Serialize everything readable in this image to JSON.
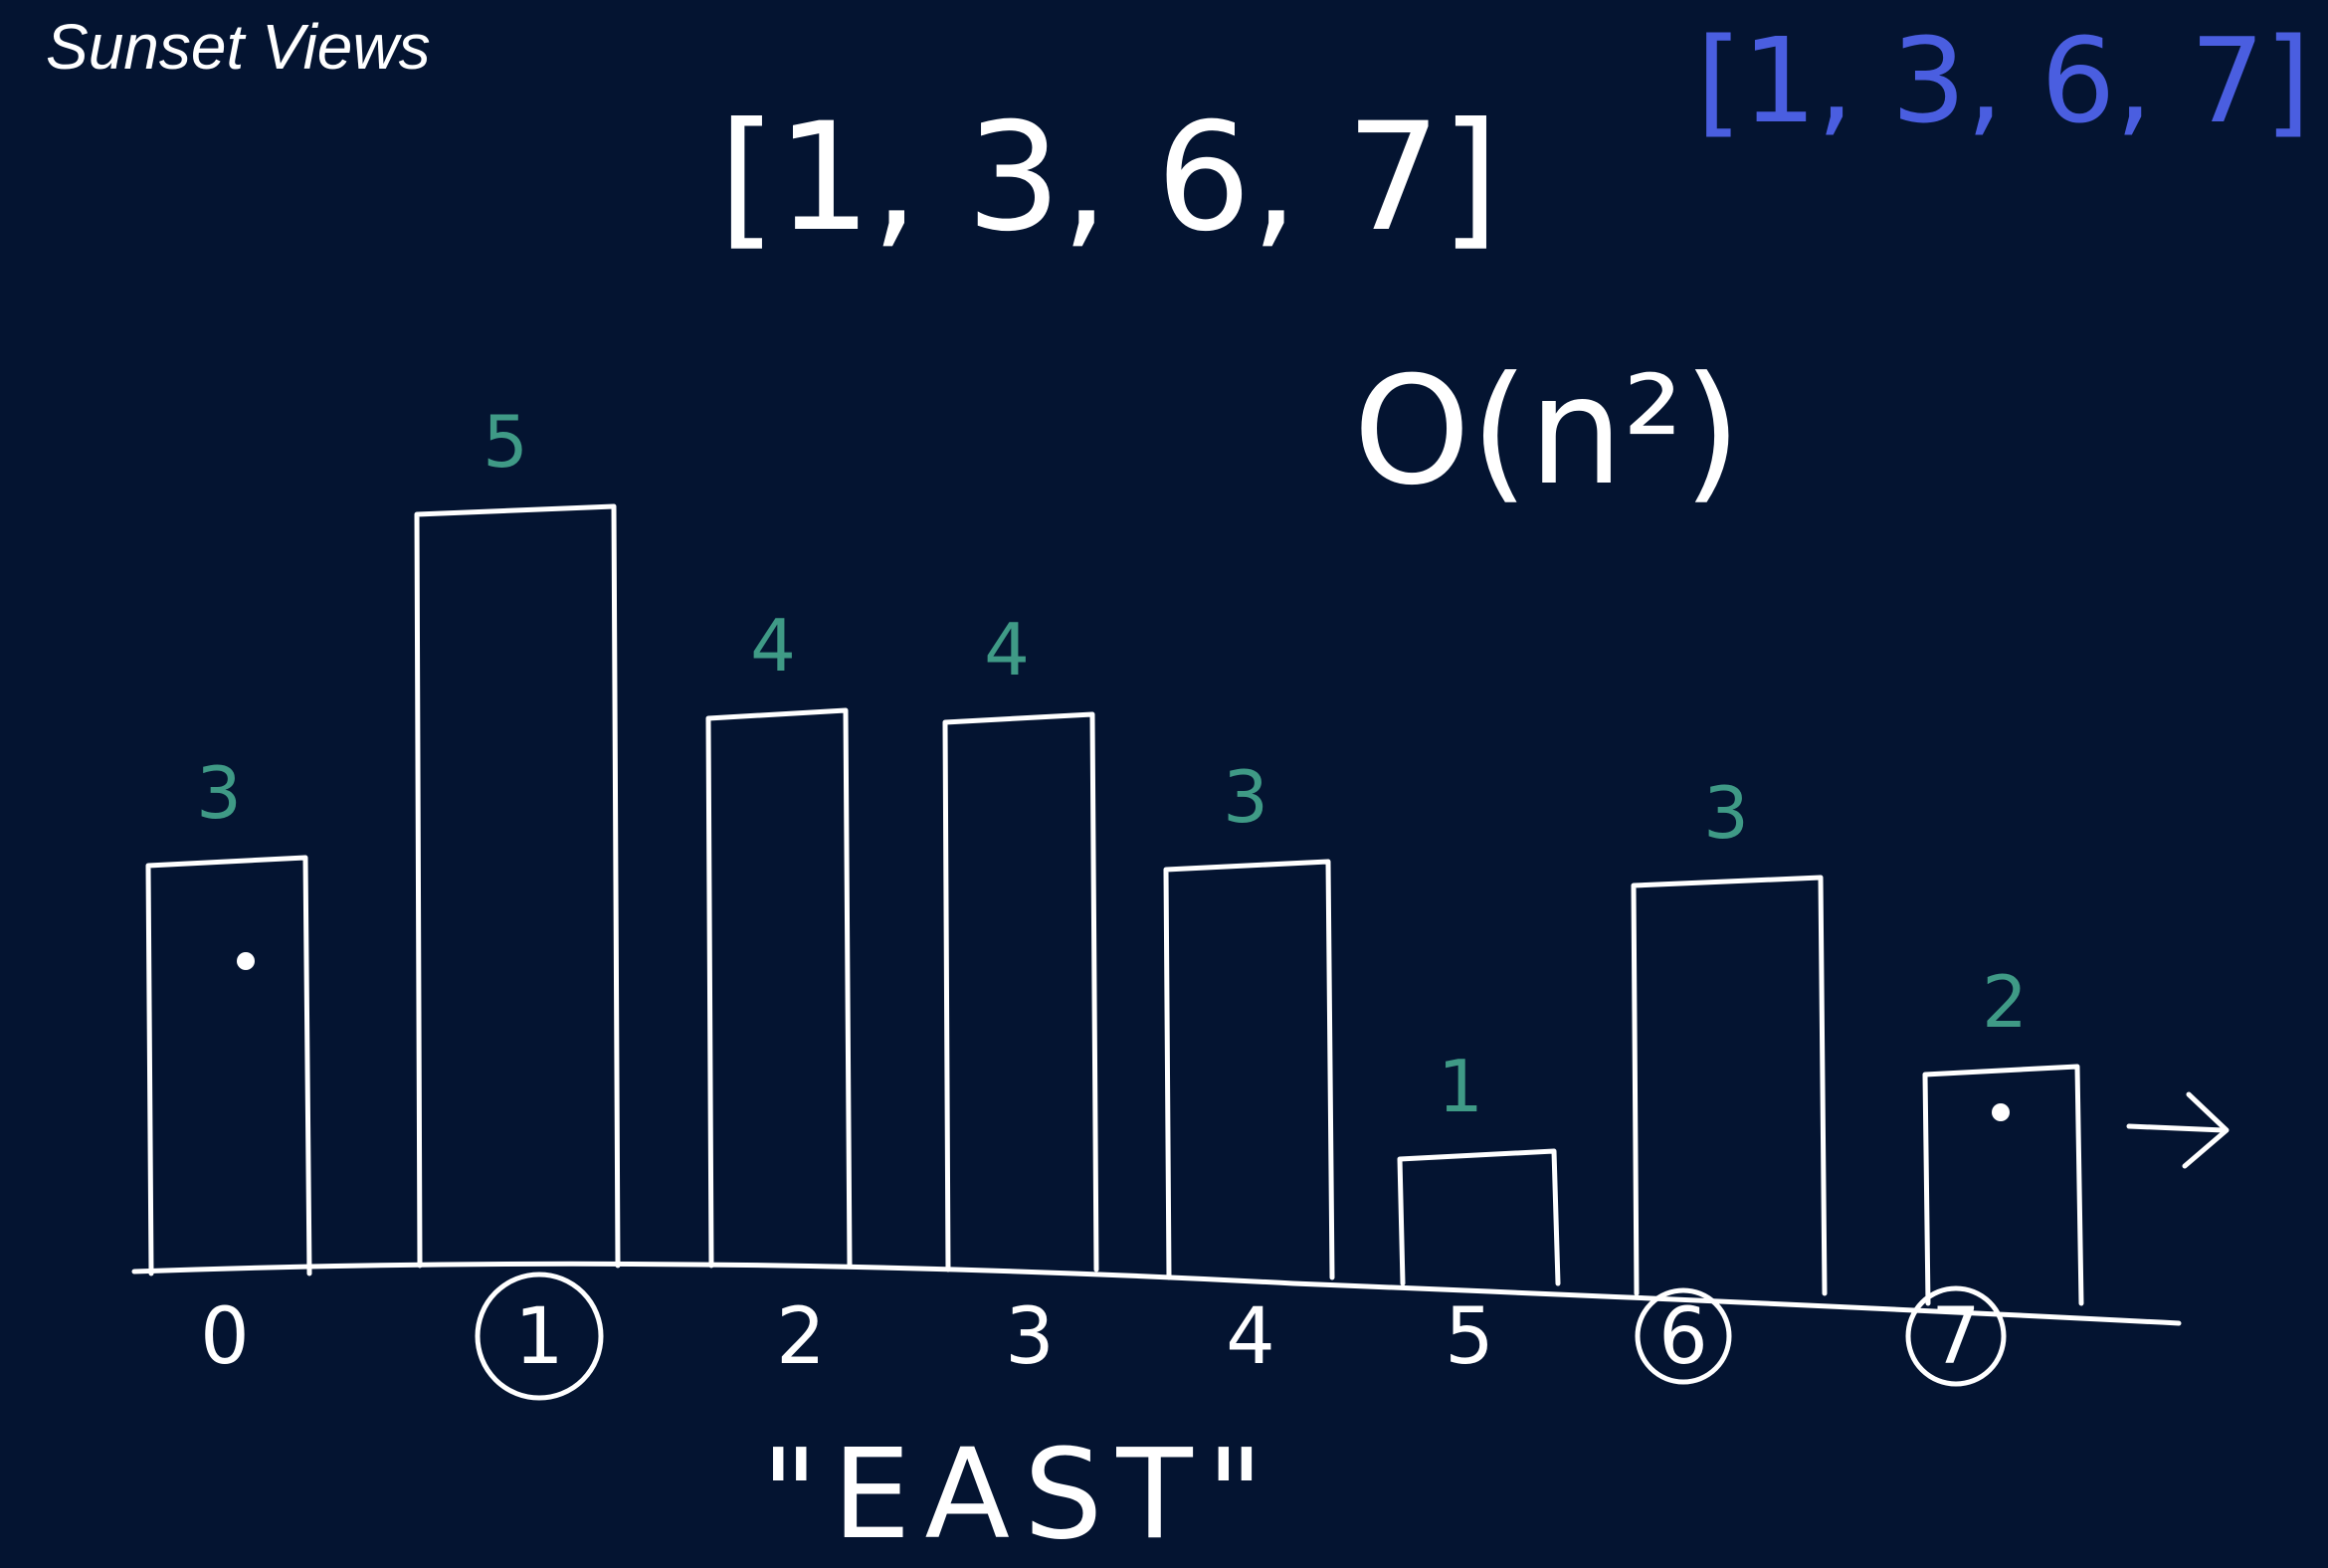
{
  "title": "Sunset Views",
  "colors": {
    "background": "#041431",
    "ink": "#ffffff",
    "height_labels": "#3f9a86",
    "answer_blue": "#4a5ee0"
  },
  "heights": [
    3,
    5,
    4,
    4,
    3,
    1,
    3,
    2
  ],
  "height_labels": [
    "3",
    "5",
    "4",
    "4",
    "3",
    "1",
    "3",
    "2"
  ],
  "index_labels": [
    "0",
    "1",
    "2",
    "3",
    "4",
    "5",
    "6",
    "7"
  ],
  "circled_indices": [
    1,
    6,
    7
  ],
  "dotted_bars": [
    0,
    7
  ],
  "answer_white": "[1, 3, 6, 7]",
  "answer_blue": "[1, 3, 6, 7]",
  "complexity": "O(n²)",
  "direction_label": "\"EAST\"",
  "direction_arrow": "→"
}
